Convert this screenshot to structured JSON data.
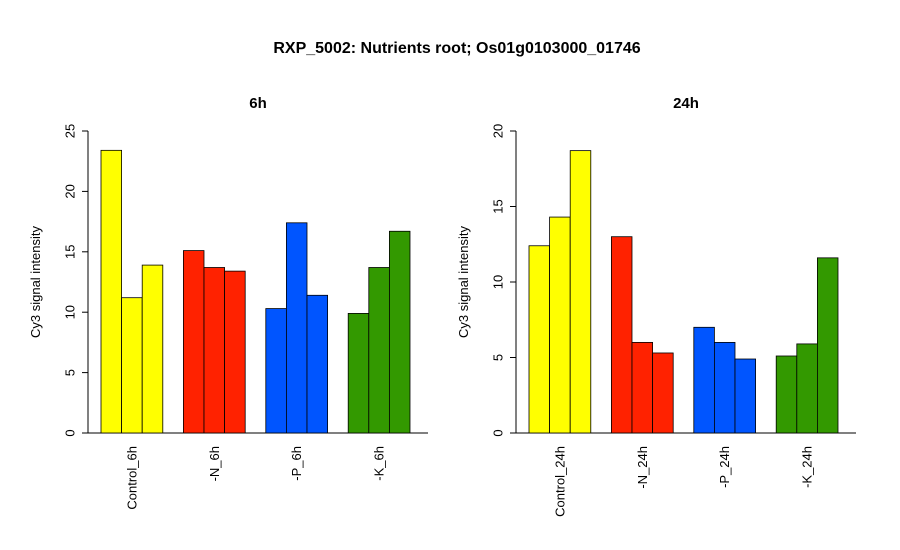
{
  "title": "RXP_5002: Nutrients root; Os01g0103000_01746",
  "chart_data": [
    {
      "type": "bar",
      "title": "6h",
      "ylabel": "Cy3 signal intensity",
      "ylim": [
        0,
        25
      ],
      "yticks": [
        0,
        5,
        10,
        15,
        20,
        25
      ],
      "categories": [
        "Control_6h",
        "-N_6h",
        "-P_6h",
        "-K_6h"
      ],
      "colors": [
        "#ffff00",
        "#ff2200",
        "#0055ff",
        "#339900"
      ],
      "groups": [
        {
          "category": "Control_6h",
          "values": [
            23.4,
            11.2,
            13.9
          ]
        },
        {
          "category": "-N_6h",
          "values": [
            15.1,
            13.7,
            13.4
          ]
        },
        {
          "category": "-P_6h",
          "values": [
            10.3,
            17.4,
            11.4
          ]
        },
        {
          "category": "-K_6h",
          "values": [
            9.9,
            13.7,
            16.7
          ]
        }
      ]
    },
    {
      "type": "bar",
      "title": "24h",
      "ylabel": "Cy3 signal intensity",
      "ylim": [
        0,
        20
      ],
      "yticks": [
        0,
        5,
        10,
        15,
        20
      ],
      "categories": [
        "Control_24h",
        "-N_24h",
        "-P_24h",
        "-K_24h"
      ],
      "colors": [
        "#ffff00",
        "#ff2200",
        "#0055ff",
        "#339900"
      ],
      "groups": [
        {
          "category": "Control_24h",
          "values": [
            12.4,
            14.3,
            18.7
          ]
        },
        {
          "category": "-N_24h",
          "values": [
            13.0,
            6.0,
            5.3
          ]
        },
        {
          "category": "-P_24h",
          "values": [
            7.0,
            6.0,
            4.9
          ]
        },
        {
          "category": "-K_24h",
          "values": [
            5.1,
            5.9,
            11.6
          ]
        }
      ]
    }
  ]
}
